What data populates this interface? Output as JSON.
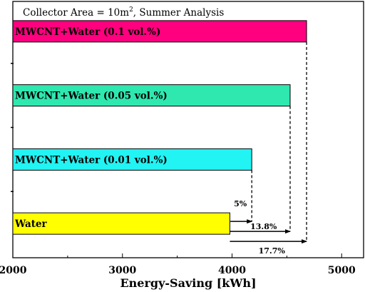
{
  "chart_data": {
    "type": "bar",
    "orientation": "horizontal",
    "annotation": {
      "label": "Collector Area = 10m",
      "superscript": "2",
      "suffix": ", Summer Analysis"
    },
    "xlabel": "Energy-Saving [kWh]",
    "xlim": [
      2000,
      5200
    ],
    "xticks": [
      "2000",
      "3000",
      "4000",
      "5000"
    ],
    "xtick_values": [
      2000,
      3000,
      4000,
      5000
    ],
    "grid": false,
    "categories": [
      "MWCNT+Water (0.1 vol.%)",
      "MWCNT+Water (0.05 vol.%)",
      "MWCNT+Water (0.01 vol.%)",
      "Water"
    ],
    "values": [
      4680,
      4530,
      4180,
      3980
    ],
    "colors": [
      "#ff007f",
      "#2ee8b0",
      "#22f3f3",
      "#ffff00"
    ],
    "comparisons": [
      {
        "from": "Water",
        "to": "MWCNT+Water (0.01 vol.%)",
        "label": "5%"
      },
      {
        "from": "Water",
        "to": "MWCNT+Water (0.05 vol.%)",
        "label": "13.8%"
      },
      {
        "from": "Water",
        "to": "MWCNT+Water (0.1 vol.%)",
        "label": "17.7%"
      }
    ]
  }
}
